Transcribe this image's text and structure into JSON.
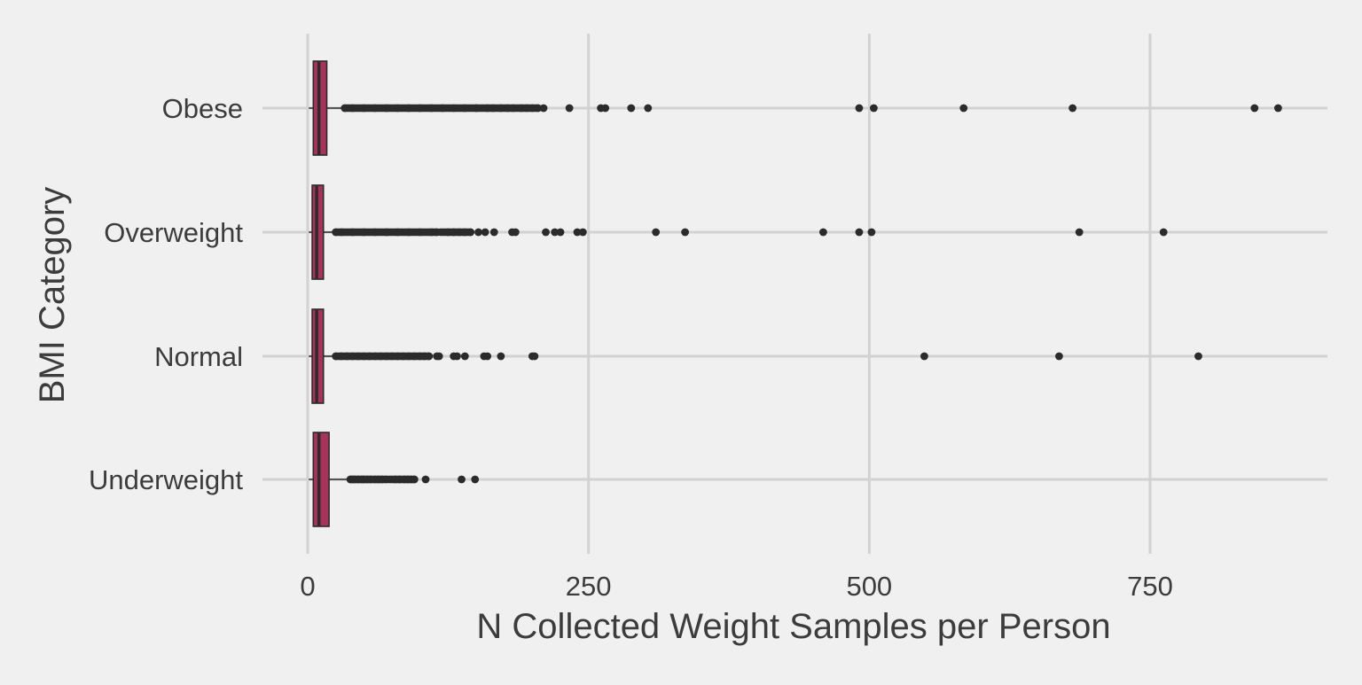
{
  "chart_data": {
    "type": "boxplot",
    "orientation": "horizontal",
    "xlabel": "N Collected Weight Samples per Person",
    "ylabel": "BMI Category",
    "xlim": [
      -20,
      910
    ],
    "x_ticks": [
      0,
      250,
      500,
      750
    ],
    "x_tick_labels": [
      "0",
      "250",
      "500",
      "750"
    ],
    "grid": true,
    "legend": "none",
    "colors": {
      "box_fill": "#a8325a",
      "box_outline": "#2b2b2b",
      "outlier": "#2b2b2b",
      "grid": "#d2d2d2",
      "background": "#f0f0f0"
    },
    "categories": [
      "Underweight",
      "Normal",
      "Overweight",
      "Obese"
    ],
    "boxes": [
      {
        "category": "Underweight",
        "min": 1,
        "q1": 5,
        "median": 10,
        "q3": 19,
        "max": 38,
        "outlier_ranges": [
          [
            38,
            70
          ],
          [
            72,
            95
          ]
        ],
        "outliers": [
          38,
          40,
          42,
          45,
          48,
          50,
          53,
          56,
          60,
          63,
          66,
          70,
          78,
          82,
          86,
          89,
          92,
          95,
          105,
          137,
          149
        ]
      },
      {
        "category": "Normal",
        "min": 1,
        "q1": 4,
        "median": 8,
        "q3": 14,
        "max": 25,
        "outlier_ranges": [
          [
            25,
            108
          ]
        ],
        "outliers": [
          25,
          30,
          35,
          40,
          45,
          50,
          55,
          60,
          65,
          70,
          75,
          80,
          85,
          90,
          95,
          100,
          104,
          108,
          115,
          117,
          130,
          133,
          140,
          157,
          160,
          172,
          200,
          202,
          549,
          669,
          793
        ]
      },
      {
        "category": "Overweight",
        "min": 1,
        "q1": 4,
        "median": 8,
        "q3": 14,
        "max": 25,
        "outlier_ranges": [
          [
            25,
            115
          ],
          [
            118,
            145
          ]
        ],
        "outliers": [
          25,
          30,
          40,
          50,
          60,
          70,
          80,
          90,
          100,
          110,
          115,
          125,
          130,
          135,
          140,
          145,
          152,
          158,
          166,
          182,
          185,
          212,
          220,
          225,
          240,
          245,
          310,
          336,
          459,
          491,
          502,
          687,
          762
        ]
      },
      {
        "category": "Obese",
        "min": 1,
        "q1": 5,
        "median": 10,
        "q3": 17,
        "max": 33,
        "outlier_ranges": [
          [
            33,
            150
          ],
          [
            150,
            205
          ]
        ],
        "outliers": [
          33,
          40,
          50,
          60,
          70,
          80,
          90,
          100,
          110,
          120,
          130,
          140,
          150,
          160,
          165,
          172,
          178,
          183,
          190,
          195,
          200,
          205,
          210,
          233,
          261,
          265,
          288,
          303,
          491,
          504,
          584,
          681,
          843,
          864
        ]
      }
    ]
  }
}
